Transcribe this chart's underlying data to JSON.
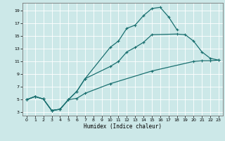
{
  "xlabel": "Humidex (Indice chaleur)",
  "bg_color": "#cce8e8",
  "grid_color": "#ffffff",
  "line_color": "#1a7070",
  "line1_x": [
    0,
    1,
    2,
    3,
    4,
    5,
    6,
    7,
    10,
    11,
    12,
    13,
    14,
    15,
    16,
    17,
    18
  ],
  "line1_y": [
    5,
    5.5,
    5.1,
    3.3,
    3.5,
    5.0,
    6.3,
    8.3,
    13.2,
    14.2,
    16.2,
    16.7,
    18.2,
    19.3,
    19.5,
    18.0,
    16.0
  ],
  "line2_x": [
    0,
    1,
    2,
    3,
    4,
    5,
    6,
    7,
    10,
    11,
    12,
    13,
    14,
    15,
    18,
    19,
    20,
    21,
    22,
    23
  ],
  "line2_y": [
    5,
    5.5,
    5.1,
    3.3,
    3.5,
    5.0,
    6.3,
    8.3,
    10.2,
    11.0,
    12.5,
    13.2,
    14.0,
    15.2,
    15.3,
    15.2,
    14.2,
    12.5,
    11.5,
    11.2
  ],
  "line3_x": [
    0,
    1,
    2,
    3,
    4,
    5,
    6,
    7,
    10,
    15,
    20,
    21,
    22,
    23
  ],
  "line3_y": [
    5,
    5.5,
    5.1,
    3.3,
    3.5,
    5.0,
    5.2,
    6.0,
    7.5,
    9.5,
    11.0,
    11.1,
    11.1,
    11.2
  ],
  "xlim": [
    -0.5,
    23.5
  ],
  "ylim": [
    2.5,
    20.2
  ],
  "yticks": [
    3,
    5,
    7,
    9,
    11,
    13,
    15,
    17,
    19
  ],
  "xticks": [
    0,
    1,
    2,
    3,
    4,
    5,
    6,
    7,
    8,
    9,
    10,
    11,
    12,
    13,
    14,
    15,
    16,
    17,
    18,
    19,
    20,
    21,
    22,
    23
  ]
}
